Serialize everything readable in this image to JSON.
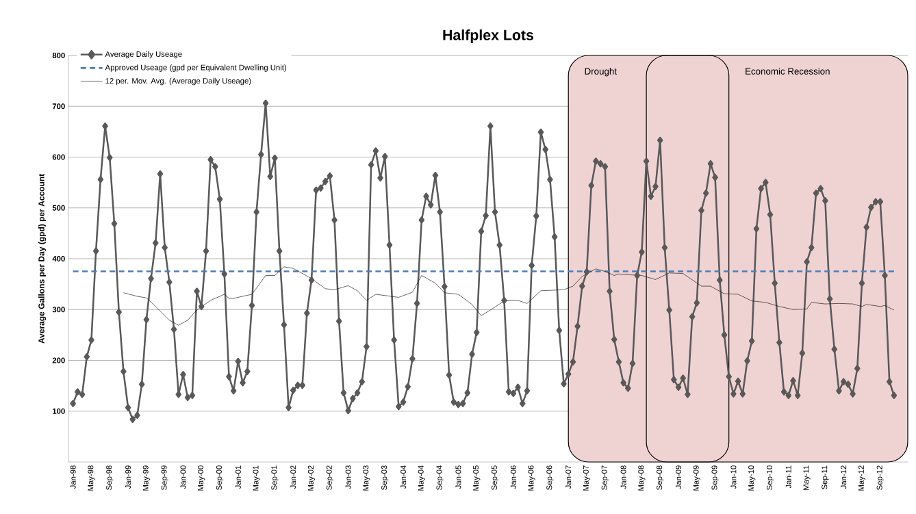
{
  "chart_data": {
    "type": "line",
    "title": "Halfplex Lots",
    "ylabel": "Average Gallons per Day (gpd) per Account",
    "x": [
      "1998-01",
      "1998-02",
      "1998-03",
      "1998-04",
      "1998-05",
      "1998-06",
      "1998-07",
      "1998-08",
      "1998-09",
      "1998-10",
      "1998-11",
      "1998-12",
      "1999-01",
      "1999-02",
      "1999-03",
      "1999-04",
      "1999-05",
      "1999-06",
      "1999-07",
      "1999-08",
      "1999-09",
      "1999-10",
      "1999-11",
      "1999-12",
      "2000-01",
      "2000-02",
      "2000-03",
      "2000-04",
      "2000-05",
      "2000-06",
      "2000-07",
      "2000-08",
      "2000-09",
      "2000-10",
      "2000-11",
      "2000-12",
      "2001-01",
      "2001-02",
      "2001-03",
      "2001-04",
      "2001-05",
      "2001-06",
      "2001-07",
      "2001-08",
      "2001-09",
      "2001-10",
      "2001-11",
      "2001-12",
      "2002-01",
      "2002-02",
      "2002-03",
      "2002-04",
      "2002-05",
      "2002-06",
      "2002-07",
      "2002-08",
      "2002-09",
      "2002-10",
      "2002-11",
      "2002-12",
      "2003-01",
      "2003-02",
      "2003-03",
      "2003-04",
      "2003-05",
      "2003-06",
      "2003-07",
      "2003-08",
      "2003-09",
      "2003-10",
      "2003-11",
      "2003-12",
      "2004-01",
      "2004-02",
      "2004-03",
      "2004-04",
      "2004-05",
      "2004-06",
      "2004-07",
      "2004-08",
      "2004-09",
      "2004-10",
      "2004-11",
      "2004-12",
      "2005-01",
      "2005-02",
      "2005-03",
      "2005-04",
      "2005-05",
      "2005-06",
      "2005-07",
      "2005-08",
      "2005-09",
      "2005-10",
      "2005-11",
      "2005-12",
      "2006-01",
      "2006-02",
      "2006-03",
      "2006-04",
      "2006-05",
      "2006-06",
      "2006-07",
      "2006-08",
      "2006-09",
      "2006-10",
      "2006-11",
      "2006-12",
      "2007-01",
      "2007-02",
      "2007-03",
      "2007-04",
      "2007-05",
      "2007-06",
      "2007-07",
      "2007-08",
      "2007-09",
      "2007-10",
      "2007-11",
      "2007-12",
      "2008-01",
      "2008-02",
      "2008-03",
      "2008-04",
      "2008-05",
      "2008-06",
      "2008-07",
      "2008-08",
      "2008-09",
      "2008-10",
      "2008-11",
      "2008-12",
      "2009-01",
      "2009-02",
      "2009-03",
      "2009-04",
      "2009-05",
      "2009-06",
      "2009-07",
      "2009-08",
      "2009-09",
      "2009-10",
      "2009-11",
      "2009-12",
      "2010-01",
      "2010-02",
      "2010-03",
      "2010-04",
      "2010-05",
      "2010-06",
      "2010-07",
      "2010-08",
      "2010-09",
      "2010-10",
      "2010-11",
      "2010-12",
      "2011-01",
      "2011-02",
      "2011-03",
      "2011-04",
      "2011-05",
      "2011-06",
      "2011-07",
      "2011-08",
      "2011-09",
      "2011-10",
      "2011-11",
      "2011-12",
      "2012-01",
      "2012-02",
      "2012-03",
      "2012-04",
      "2012-05",
      "2012-06",
      "2012-07",
      "2012-08",
      "2012-09",
      "2012-10",
      "2012-11",
      "2012-12"
    ],
    "series": [
      {
        "name": "Average Daily Useage",
        "color": "#595959",
        "marker": "diamond",
        "values": [
          115,
          138,
          133,
          207,
          240,
          415,
          556,
          661,
          599,
          469,
          295,
          178,
          107,
          84,
          92,
          153,
          280,
          361,
          431,
          567,
          422,
          354,
          261,
          133,
          172,
          127,
          131,
          336,
          306,
          415,
          595,
          581,
          517,
          370,
          168,
          140,
          198,
          156,
          178,
          308,
          492,
          605,
          706,
          562,
          598,
          415,
          270,
          107,
          141,
          151,
          151,
          293,
          358,
          535,
          539,
          552,
          563,
          476,
          277,
          136,
          101,
          125,
          136,
          158,
          227,
          585,
          612,
          559,
          601,
          427,
          240,
          109,
          118,
          148,
          203,
          312,
          476,
          523,
          506,
          564,
          492,
          345,
          171,
          118,
          113,
          115,
          136,
          212,
          255,
          454,
          485,
          661,
          492,
          427,
          318,
          138,
          135,
          147,
          115,
          140,
          387,
          484,
          649,
          615,
          556,
          443,
          259,
          154,
          173,
          197,
          267,
          346,
          374,
          544,
          592,
          587,
          581,
          336,
          241,
          197,
          156,
          145,
          194,
          367,
          413,
          592,
          523,
          542,
          633,
          422,
          299,
          162,
          147,
          165,
          133,
          286,
          313,
          495,
          529,
          587,
          560,
          358,
          250,
          168,
          134,
          159,
          134,
          199,
          238,
          459,
          538,
          550,
          487,
          352,
          235,
          138,
          131,
          160,
          131,
          214,
          394,
          422,
          529,
          538,
          514,
          321,
          222,
          140,
          158,
          153,
          134,
          184,
          352,
          462,
          501,
          512,
          512,
          367,
          158,
          131
        ]
      },
      {
        "name": "Approved Useage (gpd per Equivalent Dwelling Unit)",
        "color": "#4a7ebb",
        "line_style": "dashed",
        "x": [
          "1998-01",
          "2012-12"
        ],
        "values": [
          375,
          375
        ]
      },
      {
        "name": "12 per. Mov. Avg. (Average Daily Useage)",
        "color": "#000000",
        "x": [
          "1998-12",
          "1999-03",
          "1999-05",
          "1999-07",
          "1999-10",
          "1999-12",
          "2000-02",
          "2000-04",
          "2000-07",
          "2000-10",
          "2000-11",
          "2000-12",
          "2001-04",
          "2001-07",
          "2001-09",
          "2001-11",
          "2002-01",
          "2002-05",
          "2002-08",
          "2002-10",
          "2003-01",
          "2003-03",
          "2003-05",
          "2003-07",
          "2003-12",
          "2004-03",
          "2004-05",
          "2004-08",
          "2004-10",
          "2005-01",
          "2005-04",
          "2005-06",
          "2005-08",
          "2005-11",
          "2006-02",
          "2006-04",
          "2006-07",
          "2006-12",
          "2007-02",
          "2007-04",
          "2007-07",
          "2007-09",
          "2007-11",
          "2007-12",
          "2008-01",
          "2008-05",
          "2008-08",
          "2008-11",
          "2009-02",
          "2009-06",
          "2009-08",
          "2009-11",
          "2010-02",
          "2010-05",
          "2010-06",
          "2010-08",
          "2010-11",
          "2011-02",
          "2011-05",
          "2011-06",
          "2011-09",
          "2011-12",
          "2012-03",
          "2012-05",
          "2012-06",
          "2012-09",
          "2012-10",
          "2012-12"
        ],
        "values": [
          333,
          326,
          323,
          306,
          279,
          269,
          279,
          299,
          318,
          330,
          322,
          322,
          330,
          367,
          367,
          384,
          381,
          361,
          341,
          339,
          347,
          337,
          318,
          330,
          324,
          334,
          367,
          352,
          333,
          330,
          310,
          288,
          299,
          317,
          318,
          312,
          337,
          339,
          346,
          365,
          380,
          375,
          367,
          370,
          369,
          367,
          359,
          372,
          371,
          346,
          346,
          331,
          330,
          317,
          316,
          314,
          306,
          300,
          301,
          314,
          311,
          312,
          311,
          306,
          310,
          306,
          308,
          299
        ]
      }
    ],
    "bands": [
      {
        "axis": "x",
        "from": "2007-01",
        "to": "2009-12",
        "label": "Drought",
        "color": "#efd2d2"
      },
      {
        "axis": "x",
        "from": "2008-06",
        "to": "2013-03",
        "label": "Economic Recession",
        "color": "#efd2d2"
      }
    ],
    "xlim": [
      "1997-12",
      "2013-03"
    ],
    "xticks": [
      {
        "value": "1998-01",
        "label": "Jan-98"
      },
      {
        "value": "1998-05",
        "label": "May-98"
      },
      {
        "value": "1998-09",
        "label": "Sep-98"
      },
      {
        "value": "1999-01",
        "label": "Jan-99"
      },
      {
        "value": "1999-05",
        "label": "May-99"
      },
      {
        "value": "1999-09",
        "label": "Sep-99"
      },
      {
        "value": "2000-01",
        "label": "Jan-00"
      },
      {
        "value": "2000-05",
        "label": "May-00"
      },
      {
        "value": "2000-09",
        "label": "Sep-00"
      },
      {
        "value": "2001-01",
        "label": "Jan-01"
      },
      {
        "value": "2001-05",
        "label": "May-01"
      },
      {
        "value": "2001-09",
        "label": "Sep-01"
      },
      {
        "value": "2002-01",
        "label": "Jan-02"
      },
      {
        "value": "2002-05",
        "label": "May-02"
      },
      {
        "value": "2002-09",
        "label": "Sep-02"
      },
      {
        "value": "2003-01",
        "label": "Jan-03"
      },
      {
        "value": "2003-05",
        "label": "May-03"
      },
      {
        "value": "2003-09",
        "label": "Sep-03"
      },
      {
        "value": "2004-01",
        "label": "Jan-04"
      },
      {
        "value": "2004-05",
        "label": "May-04"
      },
      {
        "value": "2004-09",
        "label": "Sep-04"
      },
      {
        "value": "2005-01",
        "label": "Jan-05"
      },
      {
        "value": "2005-05",
        "label": "May-05"
      },
      {
        "value": "2005-09",
        "label": "Sep-05"
      },
      {
        "value": "2006-01",
        "label": "Jan-06"
      },
      {
        "value": "2006-05",
        "label": "May-06"
      },
      {
        "value": "2006-09",
        "label": "Sep-06"
      },
      {
        "value": "2007-01",
        "label": "Jan-07"
      },
      {
        "value": "2007-05",
        "label": "May-07"
      },
      {
        "value": "2007-09",
        "label": "Sep-07"
      },
      {
        "value": "2008-01",
        "label": "Jan-08"
      },
      {
        "value": "2008-05",
        "label": "May-08"
      },
      {
        "value": "2008-09",
        "label": "Sep-08"
      },
      {
        "value": "2009-01",
        "label": "Jan-09"
      },
      {
        "value": "2009-05",
        "label": "May-09"
      },
      {
        "value": "2009-09",
        "label": "Sep-09"
      },
      {
        "value": "2010-01",
        "label": "Jan-10"
      },
      {
        "value": "2010-05",
        "label": "May-10"
      },
      {
        "value": "2010-09",
        "label": "Sep-10"
      },
      {
        "value": "2011-01",
        "label": "Jan-11"
      },
      {
        "value": "2011-05",
        "label": "May-11"
      },
      {
        "value": "2011-09",
        "label": "Sep-11"
      },
      {
        "value": "2012-01",
        "label": "Jan-12"
      },
      {
        "value": "2012-05",
        "label": "May-12"
      },
      {
        "value": "2012-09",
        "label": "Sep-12"
      }
    ],
    "ylim": [
      0,
      800
    ],
    "yticks": [
      100,
      200,
      300,
      400,
      500,
      600,
      700,
      800
    ],
    "grid": "y",
    "legend": "top left"
  }
}
